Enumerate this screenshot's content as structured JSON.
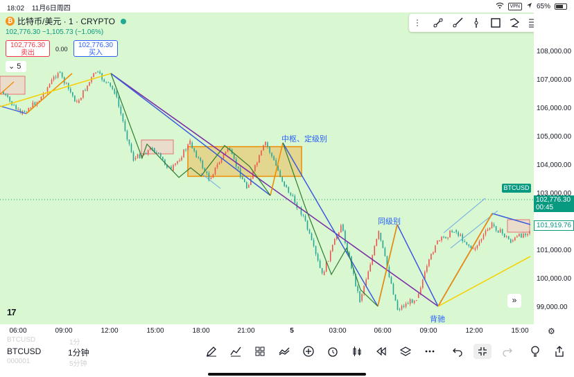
{
  "status_bar": {
    "time": "18:02",
    "date": "11月6日周四",
    "vpn": "VPN",
    "battery": "65%"
  },
  "header": {
    "btc_icon": "₿",
    "title": "比特币/美元 · 1 · CRYPTO",
    "quote": "102,776.30  −1,105.73 (−1.06%)",
    "sell_price": "102,776.30",
    "sell_label": "卖出",
    "spread": "0.00",
    "buy_price": "102,776.30",
    "buy_label": "买入",
    "collapse_count": "5"
  },
  "drawing_toolbar": {
    "icons": [
      "grip-icon",
      "trend-line-icon",
      "ray-line-icon",
      "vertical-line-icon",
      "rectangle-icon",
      "path-icon",
      "fib-retracement-icon",
      "text-tool-icon"
    ]
  },
  "annotations": {
    "hub_label": "中枢、定级别",
    "same_level_label": "同级别",
    "divergence_label": "背驰"
  },
  "price_axis": {
    "ticks": [
      "108,000.00",
      "107,000.00",
      "106,000.00",
      "105,000.00",
      "104,000.00",
      "103,000.00",
      "101,000.00",
      "100,000.00",
      "99,000.00"
    ],
    "symbol_tag": "BTCUSD",
    "last_price": "102,776.30",
    "countdown": "00:45",
    "alt_price": "101,919.76"
  },
  "time_axis": {
    "ticks": [
      "06:00",
      "09:00",
      "12:00",
      "15:00",
      "18:00",
      "21:00",
      "5",
      "03:00",
      "06:00",
      "09:00",
      "12:00",
      "15:00"
    ]
  },
  "bottom_bar": {
    "symbol": "BTCUSD",
    "interval": "1分钟",
    "ghost_symbol": "BTCUSD",
    "ghost_interval": "1分",
    "ghost_code": "000001",
    "ghost_interval2": "5分钟",
    "tools": [
      "pencil-icon",
      "indicators-icon",
      "templates-icon",
      "compare-icon",
      "add-icon",
      "alert-icon",
      "candle-type-icon",
      "replay-icon",
      "layers-icon",
      "more-icon",
      "undo-icon",
      "compact-icon",
      "redo-icon",
      "ideas-icon",
      "share-icon"
    ]
  },
  "colors": {
    "chart_bg": "#d9f7d0",
    "up": "#ef5350",
    "down": "#26a69a",
    "blue": "#3b5bdb",
    "purple": "#7b2fa8",
    "orange": "#f08c00",
    "yellow": "#f5d10a",
    "hub_fill": "#e8c56a"
  },
  "chart_data": {
    "type": "line",
    "y_unit": "BTCUSD",
    "ylim": [
      98600,
      108600
    ],
    "x_ticks": [
      "06:00",
      "09:00",
      "12:00",
      "15:00",
      "18:00",
      "21:00",
      "5",
      "03:00",
      "06:00",
      "09:00",
      "12:00",
      "15:00"
    ],
    "last_price": 102776.3,
    "series": [
      {
        "values": [
          106600,
          105800,
          106300,
          107300,
          106200,
          107300,
          106600,
          104200,
          104600,
          103800,
          104800,
          103500,
          104600,
          103200,
          104800,
          103300,
          102200,
          100100,
          101900,
          99200,
          101600,
          98900,
          99300,
          101200,
          101700,
          101000,
          101900,
          101300,
          101700
        ]
      }
    ],
    "drawings": {
      "hub_box": {
        "y_top": 104650,
        "y_bottom": 103600
      },
      "segment_highs": [
        107300,
        104800
      ],
      "segment_lows": [
        98950,
        98950
      ]
    }
  }
}
